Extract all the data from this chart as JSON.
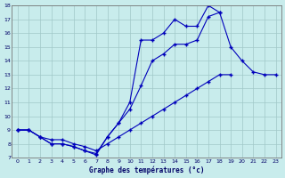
{
  "bg_color": "#c8ecec",
  "line_color": "#0000bb",
  "grid_color": "#a0c8c8",
  "xlabel": "Graphe des températures (°c)",
  "xlim": [
    -0.5,
    23.5
  ],
  "ylim": [
    7,
    18
  ],
  "yticks": [
    7,
    8,
    9,
    10,
    11,
    12,
    13,
    14,
    15,
    16,
    17,
    18
  ],
  "xticks": [
    0,
    1,
    2,
    3,
    4,
    5,
    6,
    7,
    8,
    9,
    10,
    11,
    12,
    13,
    14,
    15,
    16,
    17,
    18,
    19,
    20,
    21,
    22,
    23
  ],
  "series": [
    [
      9.0,
      9.0,
      8.5,
      8.0,
      8.0,
      7.8,
      7.5,
      7.2,
      8.5,
      9.5,
      11.0,
      15.5,
      15.5,
      16.0,
      17.0,
      16.5,
      16.5,
      18.0,
      17.5,
      null,
      null,
      null,
      null,
      null
    ],
    [
      9.0,
      9.0,
      8.5,
      8.0,
      8.0,
      7.8,
      7.5,
      7.3,
      8.5,
      9.5,
      10.5,
      12.2,
      14.0,
      14.5,
      15.2,
      15.2,
      15.5,
      17.2,
      17.5,
      15.0,
      14.0,
      13.2,
      13.0,
      13.0
    ],
    [
      9.0,
      9.0,
      8.5,
      8.3,
      8.3,
      8.0,
      7.8,
      7.5,
      8.0,
      8.5,
      9.0,
      9.5,
      10.0,
      10.5,
      11.0,
      11.5,
      12.0,
      12.5,
      13.0,
      13.0,
      null,
      null,
      null,
      null
    ]
  ]
}
